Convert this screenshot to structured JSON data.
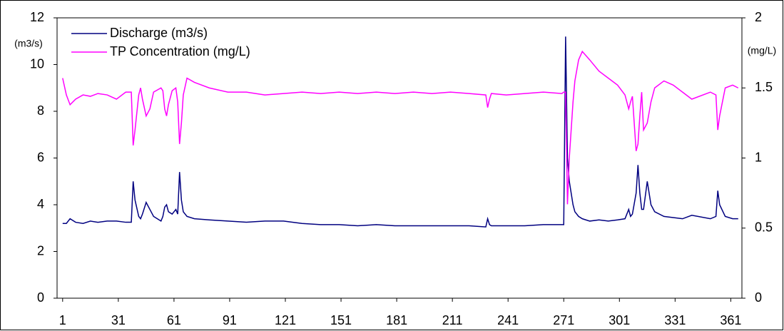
{
  "chart_data": {
    "type": "line",
    "y_label": "(m3/s)",
    "y2_label": "(mg/L)",
    "x": [
      1,
      3,
      5,
      8,
      12,
      16,
      20,
      25,
      30,
      35,
      38,
      39,
      40,
      42,
      43,
      44,
      46,
      48,
      50,
      54,
      55,
      56,
      57,
      58,
      60,
      62,
      63,
      64,
      65,
      66,
      68,
      72,
      80,
      90,
      100,
      110,
      120,
      130,
      140,
      150,
      160,
      170,
      180,
      190,
      200,
      210,
      220,
      229,
      230,
      231,
      232,
      240,
      250,
      260,
      270,
      271,
      272,
      273,
      274,
      276,
      277,
      279,
      281,
      285,
      290,
      295,
      300,
      304,
      306,
      307,
      308,
      310,
      311,
      312,
      313,
      314,
      316,
      318,
      320,
      325,
      330,
      335,
      340,
      350,
      353,
      354,
      355,
      358,
      362,
      365
    ],
    "series": [
      {
        "name": "Discharge (m3/s)",
        "color": "#000080",
        "values": [
          3.2,
          3.2,
          3.4,
          3.25,
          3.2,
          3.3,
          3.25,
          3.3,
          3.3,
          3.25,
          3.25,
          5.0,
          4.2,
          3.5,
          3.4,
          3.6,
          4.1,
          3.8,
          3.5,
          3.3,
          3.5,
          3.9,
          4.0,
          3.7,
          3.6,
          3.8,
          3.6,
          5.4,
          4.2,
          3.7,
          3.5,
          3.4,
          3.35,
          3.3,
          3.25,
          3.3,
          3.3,
          3.2,
          3.15,
          3.15,
          3.1,
          3.15,
          3.1,
          3.1,
          3.1,
          3.1,
          3.1,
          3.05,
          3.4,
          3.15,
          3.1,
          3.1,
          3.1,
          3.15,
          3.15,
          3.15,
          11.2,
          6.0,
          5.0,
          4.0,
          3.7,
          3.5,
          3.4,
          3.3,
          3.35,
          3.3,
          3.35,
          3.4,
          3.8,
          3.5,
          3.6,
          4.5,
          5.7,
          4.5,
          3.8,
          3.8,
          5.0,
          4.0,
          3.7,
          3.5,
          3.45,
          3.4,
          3.55,
          3.4,
          3.5,
          4.6,
          4.0,
          3.5,
          3.4,
          3.4
        ]
      },
      {
        "name": "TP Concentration (mg/L)",
        "color": "#ff00ff",
        "axis": "y2",
        "values": [
          1.57,
          1.45,
          1.38,
          1.42,
          1.45,
          1.44,
          1.46,
          1.45,
          1.42,
          1.47,
          1.47,
          1.09,
          1.2,
          1.45,
          1.5,
          1.42,
          1.3,
          1.35,
          1.47,
          1.5,
          1.48,
          1.35,
          1.3,
          1.38,
          1.48,
          1.5,
          1.4,
          1.1,
          1.25,
          1.45,
          1.57,
          1.54,
          1.5,
          1.47,
          1.47,
          1.45,
          1.46,
          1.47,
          1.46,
          1.47,
          1.46,
          1.47,
          1.46,
          1.47,
          1.46,
          1.47,
          1.46,
          1.45,
          1.36,
          1.42,
          1.46,
          1.45,
          1.46,
          1.47,
          1.46,
          1.47,
          1.47,
          0.67,
          1.0,
          1.4,
          1.55,
          1.7,
          1.76,
          1.7,
          1.62,
          1.57,
          1.52,
          1.45,
          1.35,
          1.4,
          1.44,
          1.05,
          1.1,
          1.3,
          1.47,
          1.2,
          1.25,
          1.4,
          1.5,
          1.55,
          1.52,
          1.47,
          1.42,
          1.47,
          1.45,
          1.2,
          1.3,
          1.5,
          1.52,
          1.5
        ]
      }
    ],
    "xlim": [
      -2,
      367
    ],
    "xticks": [
      1,
      31,
      61,
      91,
      121,
      151,
      181,
      211,
      241,
      271,
      301,
      331,
      361
    ],
    "ylim": [
      0,
      12
    ],
    "yticks": [
      0,
      2,
      4,
      6,
      8,
      10,
      12
    ],
    "y2lim": [
      0,
      2
    ],
    "y2ticks": [
      0,
      0.5,
      1,
      1.5,
      2
    ],
    "legend": "upper-left",
    "grid": false
  }
}
